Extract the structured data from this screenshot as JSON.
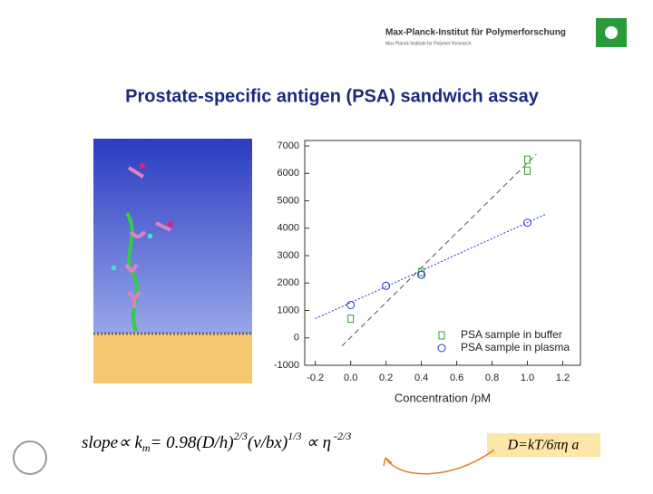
{
  "header": {
    "institute": "Max-Planck-Institut für Polymerforschung",
    "subtitle": "Max Planck Institute for Polymer Research"
  },
  "title": "Prostate-specific antigen (PSA) sandwich assay",
  "chart_data": {
    "type": "scatter",
    "xlabel": "Concentration /pM",
    "xlim": [
      -0.26,
      1.3
    ],
    "ylim": [
      -1000,
      7200
    ],
    "xticks": [
      -0.2,
      {
        "value": 0,
        "label": "0.0"
      },
      0.2,
      0.4,
      0.6,
      0.8,
      {
        "value": 1,
        "label": "1.0"
      },
      1.2
    ],
    "yticks": [
      -1000,
      0,
      1000,
      2000,
      3000,
      4000,
      5000,
      6000,
      7000
    ],
    "legend": "lower-right",
    "series": [
      {
        "name": "PSA sample in buffer",
        "color": "#33a033",
        "x": [
          0,
          0.4,
          1,
          1
        ],
        "values": [
          700,
          2400,
          6100,
          6500
        ]
      },
      {
        "name": "PSA sample in plasma",
        "color": "#2233cc",
        "x": [
          0,
          0.2,
          0.4,
          1
        ],
        "values": [
          1200,
          1900,
          2300,
          4200
        ]
      }
    ],
    "fits": [
      {
        "color": "#555555",
        "x": [
          -0.05,
          1.05
        ],
        "values": [
          -300,
          6700
        ]
      },
      {
        "color": "#2233cc",
        "x": [
          -0.2,
          1.1
        ],
        "values": [
          700,
          4500
        ]
      }
    ]
  },
  "formula": {
    "parts": [
      "slope",
      "∝",
      " k",
      "m",
      "= 0.98(D/h)",
      "2/3",
      "(v/bx)",
      "1/3",
      " ∝ ",
      "η",
      " -2/3"
    ]
  },
  "diffusion": "D=kT/6πη a"
}
